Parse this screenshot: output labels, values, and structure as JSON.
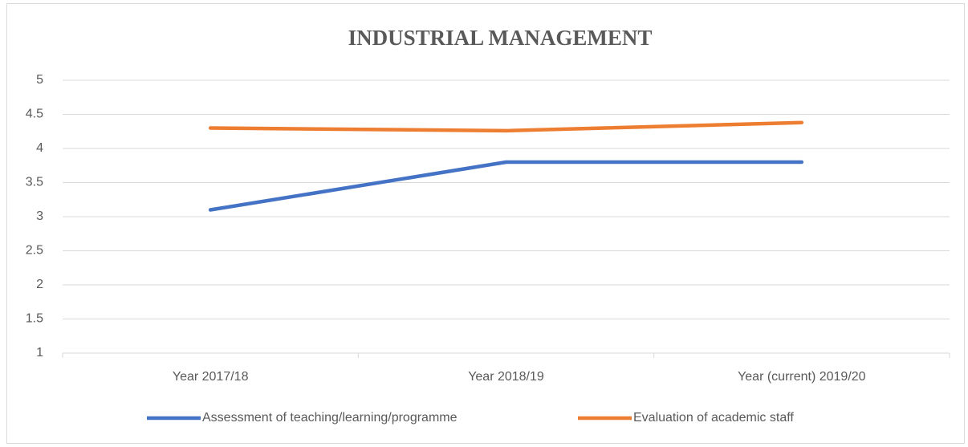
{
  "chart_data": {
    "type": "line",
    "title": "INDUSTRIAL MANAGEMENT",
    "categories": [
      "Year 2017/18",
      "Year 2018/19",
      "Year (current) 2019/20"
    ],
    "series": [
      {
        "name": "Assessment of teaching/learning/programme",
        "color": "#4472c4",
        "values": [
          3.1,
          3.8,
          3.8
        ]
      },
      {
        "name": "Evaluation of academic staff",
        "color": "#ed7d31",
        "values": [
          4.3,
          4.26,
          4.38
        ]
      }
    ],
    "ylim": [
      1,
      5
    ],
    "yticks": [
      1,
      1.5,
      2,
      2.5,
      3,
      3.5,
      4,
      4.5,
      5
    ],
    "grid": true,
    "legend": "bottom"
  }
}
